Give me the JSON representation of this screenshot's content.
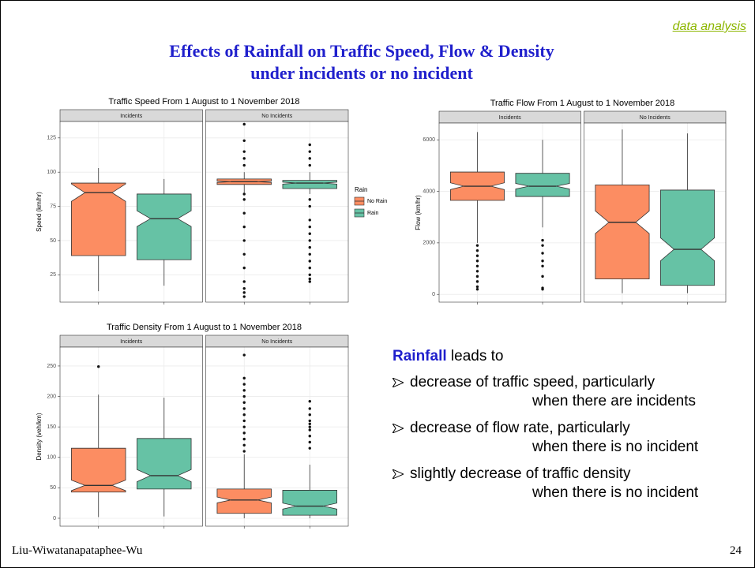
{
  "slide": {
    "tag": "data analysis",
    "title": [
      "Effects of Rainfall  on Traffic Speed, Flow & Density",
      "under incidents or no incident"
    ],
    "intro_bold": "Rainfall",
    "intro": "leads to",
    "bullets": [
      [
        "decrease of traffic speed, particularly",
        "when there are incidents"
      ],
      [
        "decrease of flow rate, particularly",
        "when there is no incident"
      ],
      [
        "slightly decrease of traffic density",
        "when there is no incident"
      ]
    ],
    "footer": "Liu-Wiwatanapataphee-Wu",
    "page": 24
  },
  "chart_data": [
    {
      "type": "box",
      "title": "Traffic Speed From 1 August to 1 November 2018",
      "ylabel": "Speed (km/hr)",
      "facets": [
        "Incidents",
        "No Incidents"
      ],
      "legend_title": "Rain",
      "ylim": [
        5,
        137
      ],
      "yticks": [
        25,
        50,
        75,
        100,
        125
      ],
      "grid": true,
      "series": [
        {
          "name": "No Rain",
          "color": "#fc8d62",
          "boxes": [
            {
              "whislo": 13,
              "q1": 39,
              "med": 85,
              "q3": 92,
              "whishi": 103,
              "outliers": []
            },
            {
              "whislo": 85,
              "q1": 91,
              "med": 93,
              "q3": 95,
              "whishi": 100,
              "outliers": [
                9,
                12,
                15,
                20,
                30,
                40,
                50,
                60,
                70,
                80,
                84,
                105,
                110,
                115,
                123,
                135
              ]
            }
          ]
        },
        {
          "name": "Rain",
          "color": "#66c2a5",
          "boxes": [
            {
              "whislo": 17,
              "q1": 36,
              "med": 66,
              "q3": 84,
              "whishi": 95,
              "outliers": []
            },
            {
              "whislo": 84,
              "q1": 88,
              "med": 92,
              "q3": 94,
              "whishi": 100,
              "outliers": [
                20,
                22,
                25,
                30,
                35,
                40,
                45,
                50,
                55,
                60,
                65,
                75,
                80,
                105,
                110,
                115,
                120
              ]
            }
          ]
        }
      ]
    },
    {
      "type": "box",
      "title": "Traffic Flow From 1 August to 1 November 2018",
      "ylabel": "Flow (km/hr)",
      "facets": [
        "Incidents",
        "No Incidents"
      ],
      "ylim": [
        -300,
        6650
      ],
      "yticks": [
        0,
        2000,
        4000,
        6000
      ],
      "grid": true,
      "series": [
        {
          "name": "No Rain",
          "color": "#fc8d62",
          "boxes": [
            {
              "whislo": 2000,
              "q1": 3650,
              "med": 4200,
              "q3": 4750,
              "whishi": 6300,
              "outliers": [
                200,
                300,
                500,
                700,
                900,
                1100,
                1300,
                1500,
                1700,
                1900
              ]
            },
            {
              "whislo": 50,
              "q1": 600,
              "med": 2800,
              "q3": 4250,
              "whishi": 6400,
              "outliers": []
            }
          ]
        },
        {
          "name": "Rain",
          "color": "#66c2a5",
          "boxes": [
            {
              "whislo": 2600,
              "q1": 3800,
              "med": 4200,
              "q3": 4700,
              "whishi": 6000,
              "outliers": [
                200,
                250,
                700,
                1100,
                1300,
                1600,
                1900,
                2100
              ]
            },
            {
              "whislo": 50,
              "q1": 350,
              "med": 1750,
              "q3": 4050,
              "whishi": 6250,
              "outliers": []
            }
          ]
        }
      ]
    },
    {
      "type": "box",
      "title": "Traffic Density From 1 August to 1 November 2018",
      "ylabel": "Density (veh/km)",
      "facets": [
        "Incidents",
        "No Incidents"
      ],
      "ylim": [
        -13,
        281
      ],
      "yticks": [
        0,
        50,
        100,
        150,
        200,
        250
      ],
      "grid": true,
      "series": [
        {
          "name": "No Rain",
          "color": "#fc8d62",
          "boxes": [
            {
              "whislo": 2,
              "q1": 43,
              "med": 54,
              "q3": 115,
              "whishi": 203,
              "outliers": [
                249
              ]
            },
            {
              "whislo": 0,
              "q1": 8,
              "med": 30,
              "q3": 48,
              "whishi": 105,
              "outliers": [
                110,
                120,
                130,
                140,
                150,
                160,
                170,
                180,
                190,
                200,
                210,
                220,
                230,
                268
              ]
            }
          ]
        },
        {
          "name": "Rain",
          "color": "#66c2a5",
          "boxes": [
            {
              "whislo": 3,
              "q1": 48,
              "med": 70,
              "q3": 131,
              "whishi": 198,
              "outliers": []
            },
            {
              "whislo": 0,
              "q1": 5,
              "med": 20,
              "q3": 46,
              "whishi": 88,
              "outliers": [
                115,
                125,
                135,
                145,
                150,
                155,
                160,
                170,
                180,
                192
              ]
            }
          ]
        }
      ]
    }
  ]
}
